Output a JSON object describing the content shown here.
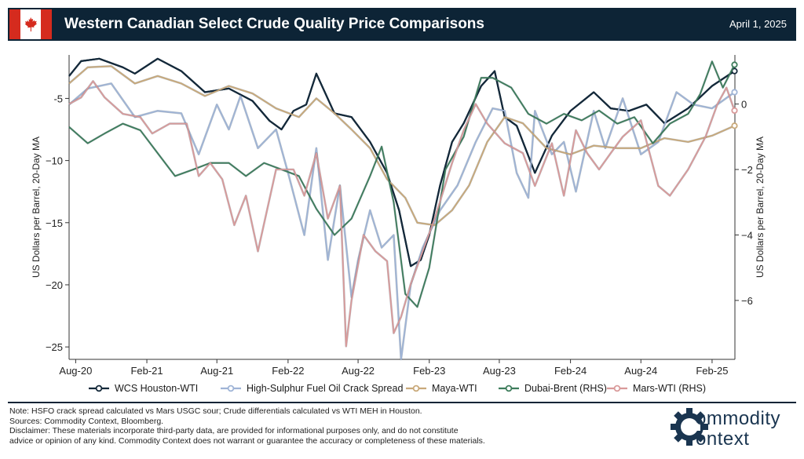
{
  "header": {
    "title": "Western Canadian Select Crude Quality Price Comparisons",
    "date": "April 1, 2025",
    "flag_icon": "maple-leaf-icon"
  },
  "colors": {
    "header_bg": "#0d2436",
    "wcs": "#14293a",
    "hsfo": "#9fb4d6",
    "maya": "#c9a97a",
    "dubai": "#3e7d5c",
    "mars": "#d99a9a"
  },
  "chart_data": {
    "type": "line",
    "x_tick_labels": [
      "Aug-20",
      "Feb-21",
      "Aug-21",
      "Feb-22",
      "Aug-22",
      "Feb-23",
      "Aug-23",
      "Feb-24",
      "Aug-24",
      "Feb-25"
    ],
    "x_range": [
      "2020-07-15",
      "2025-04-01"
    ],
    "left_axis": {
      "label": "US Dollars per Barrel, 20-Day MA",
      "ylim": [
        -26,
        -1.5
      ],
      "ticks": [
        -5,
        -10,
        -15,
        -20,
        -25
      ],
      "tick_labels": [
        "-5",
        "−10",
        "−15",
        "−20",
        "−25"
      ]
    },
    "right_axis": {
      "label": "US Dollars per Barrel, 20-Day MA",
      "ylim": [
        -7.8,
        1.5
      ],
      "ticks": [
        0,
        -2,
        -4,
        -6
      ],
      "tick_labels": [
        "0",
        "−2",
        "−4",
        "−6"
      ]
    },
    "grid": false,
    "legend_position": "bottom",
    "series": [
      {
        "name": "WCS Houston-WTI",
        "axis": "left",
        "x": [
          "2020-07-15",
          "2020-08-15",
          "2020-10-01",
          "2020-12-01",
          "2021-01-01",
          "2021-03-01",
          "2021-05-01",
          "2021-07-01",
          "2021-09-01",
          "2021-11-01",
          "2021-12-15",
          "2022-01-15",
          "2022-02-15",
          "2022-03-20",
          "2022-04-15",
          "2022-06-01",
          "2022-07-15",
          "2022-09-01",
          "2022-10-15",
          "2022-11-15",
          "2022-12-15",
          "2023-01-10",
          "2023-02-01",
          "2023-03-01",
          "2023-04-01",
          "2023-05-01",
          "2023-06-15",
          "2023-07-20",
          "2023-08-15",
          "2023-09-15",
          "2023-11-01",
          "2023-12-15",
          "2024-02-01",
          "2024-04-01",
          "2024-05-15",
          "2024-07-01",
          "2024-08-15",
          "2024-10-01",
          "2024-12-01",
          "2025-02-01",
          "2025-03-31"
        ],
        "y": [
          -3.2,
          -2.0,
          -1.8,
          -2.5,
          -3.0,
          -1.8,
          -2.8,
          -4.5,
          -4.2,
          -5.2,
          -6.8,
          -7.5,
          -6.0,
          -5.5,
          -3.0,
          -6.2,
          -6.5,
          -8.5,
          -11.0,
          -14.0,
          -18.5,
          -18.0,
          -16.0,
          -12.0,
          -8.5,
          -7.0,
          -4.0,
          -2.8,
          -6.5,
          -7.2,
          -11.0,
          -8.0,
          -6.0,
          -4.5,
          -5.8,
          -6.0,
          -5.5,
          -7.0,
          -5.8,
          -4.0,
          -2.8
        ]
      },
      {
        "name": "High-Sulphur Fuel Oil Crack Spread",
        "axis": "left",
        "x": [
          "2020-07-15",
          "2020-09-01",
          "2020-11-01",
          "2021-01-01",
          "2021-03-01",
          "2021-05-01",
          "2021-06-15",
          "2021-08-01",
          "2021-09-01",
          "2021-10-01",
          "2021-11-15",
          "2022-01-01",
          "2022-02-01",
          "2022-03-15",
          "2022-04-15",
          "2022-05-15",
          "2022-06-15",
          "2022-07-15",
          "2022-08-01",
          "2022-09-01",
          "2022-10-01",
          "2022-11-01",
          "2022-11-20",
          "2022-12-15",
          "2023-01-15",
          "2023-03-01",
          "2023-04-15",
          "2023-06-01",
          "2023-07-15",
          "2023-08-15",
          "2023-09-15",
          "2023-10-15",
          "2023-11-01",
          "2023-12-15",
          "2024-01-15",
          "2024-02-15",
          "2024-04-01",
          "2024-05-01",
          "2024-06-15",
          "2024-08-01",
          "2024-09-15",
          "2024-11-01",
          "2024-12-15",
          "2025-02-01",
          "2025-03-31"
        ],
        "y": [
          -5.5,
          -4.2,
          -3.8,
          -6.5,
          -6.0,
          -6.2,
          -9.5,
          -5.5,
          -7.5,
          -4.8,
          -9.0,
          -7.5,
          -11.0,
          -16.0,
          -9.0,
          -18.0,
          -12.0,
          -21.0,
          -18.0,
          -14.0,
          -17.0,
          -16.0,
          -26.0,
          -20.0,
          -17.0,
          -14.0,
          -12.0,
          -8.5,
          -5.8,
          -6.0,
          -11.0,
          -13.0,
          -6.0,
          -9.5,
          -8.5,
          -12.5,
          -6.0,
          -9.0,
          -5.0,
          -9.5,
          -8.5,
          -4.5,
          -5.5,
          -5.8,
          -4.5
        ]
      },
      {
        "name": "Maya-WTI",
        "axis": "left",
        "x": [
          "2020-07-15",
          "2020-09-01",
          "2020-11-01",
          "2021-01-01",
          "2021-03-01",
          "2021-05-01",
          "2021-07-01",
          "2021-09-01",
          "2021-11-01",
          "2022-01-01",
          "2022-03-01",
          "2022-04-15",
          "2022-06-01",
          "2022-07-15",
          "2022-09-01",
          "2022-10-15",
          "2022-12-01",
          "2023-01-01",
          "2023-02-15",
          "2023-04-01",
          "2023-05-15",
          "2023-07-01",
          "2023-08-15",
          "2023-10-01",
          "2023-12-01",
          "2024-02-01",
          "2024-04-01",
          "2024-06-01",
          "2024-08-01",
          "2024-10-01",
          "2024-12-01",
          "2025-02-01",
          "2025-03-31"
        ],
        "y": [
          -3.8,
          -2.5,
          -2.4,
          -3.8,
          -3.2,
          -3.8,
          -4.8,
          -4.0,
          -4.6,
          -5.8,
          -6.5,
          -5.0,
          -6.2,
          -7.5,
          -9.0,
          -11.5,
          -13.0,
          -15.0,
          -15.2,
          -14.0,
          -12.0,
          -8.5,
          -6.5,
          -7.0,
          -9.0,
          -9.5,
          -8.8,
          -9.0,
          -9.0,
          -8.2,
          -8.5,
          -8.0,
          -7.2
        ]
      },
      {
        "name": "Dubai-Brent (RHS)",
        "axis": "right",
        "x": [
          "2020-07-15",
          "2020-09-01",
          "2020-10-15",
          "2020-12-01",
          "2021-01-15",
          "2021-03-01",
          "2021-04-15",
          "2021-06-01",
          "2021-07-15",
          "2021-09-01",
          "2021-10-15",
          "2021-12-01",
          "2022-01-15",
          "2022-03-01",
          "2022-04-15",
          "2022-06-01",
          "2022-07-15",
          "2022-09-01",
          "2022-10-01",
          "2022-11-01",
          "2022-12-01",
          "2023-01-01",
          "2023-02-01",
          "2023-03-15",
          "2023-05-01",
          "2023-06-15",
          "2023-07-15",
          "2023-09-01",
          "2023-10-15",
          "2023-12-01",
          "2024-01-15",
          "2024-03-01",
          "2024-04-15",
          "2024-06-01",
          "2024-07-15",
          "2024-09-01",
          "2024-10-15",
          "2024-12-01",
          "2025-01-01",
          "2025-02-01",
          "2025-03-01",
          "2025-03-31"
        ],
        "y": [
          -0.7,
          -1.2,
          -0.9,
          -0.6,
          -0.8,
          -1.5,
          -2.2,
          -2.0,
          -1.8,
          -1.8,
          -2.2,
          -1.8,
          -2.0,
          -2.2,
          -3.2,
          -4.0,
          -3.5,
          -2.2,
          -1.3,
          -3.0,
          -5.8,
          -6.2,
          -5.0,
          -2.0,
          -1.0,
          0.8,
          0.8,
          0.5,
          -0.3,
          -0.6,
          -0.3,
          -0.5,
          -0.2,
          -0.6,
          -0.4,
          -1.2,
          -0.6,
          -0.3,
          0.3,
          1.3,
          0.5,
          1.2
        ]
      },
      {
        "name": "Mars-WTI (RHS)",
        "axis": "right",
        "x": [
          "2020-07-15",
          "2020-08-15",
          "2020-09-15",
          "2020-10-15",
          "2020-12-01",
          "2021-01-15",
          "2021-02-15",
          "2021-04-01",
          "2021-05-15",
          "2021-06-15",
          "2021-07-15",
          "2021-08-15",
          "2021-09-15",
          "2021-10-15",
          "2021-11-15",
          "2022-01-01",
          "2022-02-15",
          "2022-03-15",
          "2022-04-15",
          "2022-05-15",
          "2022-06-15",
          "2022-07-01",
          "2022-07-15",
          "2022-08-15",
          "2022-09-15",
          "2022-10-15",
          "2022-11-01",
          "2022-11-20",
          "2022-12-15",
          "2023-01-15",
          "2023-02-15",
          "2023-04-01",
          "2023-05-01",
          "2023-06-01",
          "2023-07-01",
          "2023-08-15",
          "2023-10-01",
          "2023-11-01",
          "2023-12-15",
          "2024-01-15",
          "2024-02-15",
          "2024-03-15",
          "2024-04-15",
          "2024-05-15",
          "2024-06-15",
          "2024-08-01",
          "2024-09-15",
          "2024-10-15",
          "2024-12-01",
          "2025-01-15",
          "2025-02-15",
          "2025-03-10",
          "2025-03-31"
        ],
        "y": [
          0.0,
          0.2,
          0.7,
          0.2,
          -0.3,
          -0.4,
          -0.9,
          -0.6,
          -0.6,
          -2.2,
          -1.8,
          -2.3,
          -3.7,
          -2.8,
          -4.5,
          -2.0,
          -2.0,
          -2.8,
          -1.5,
          -3.5,
          -2.5,
          -7.4,
          -6.0,
          -4.0,
          -4.5,
          -4.8,
          -7.0,
          -6.5,
          -5.5,
          -4.5,
          -3.5,
          -1.8,
          -0.8,
          0.0,
          -0.6,
          -1.2,
          -1.5,
          -2.5,
          -1.2,
          -2.8,
          -0.8,
          -1.5,
          -2.0,
          -1.5,
          -1.0,
          -0.5,
          -2.5,
          -2.8,
          -2.0,
          -1.0,
          0.0,
          0.5,
          -0.2
        ]
      }
    ]
  },
  "legend": {
    "items": [
      "WCS Houston-WTI",
      "High-Sulphur Fuel Oil Crack Spread",
      "Maya-WTI",
      "Dubai-Brent (RHS)",
      "Mars-WTI (RHS)"
    ]
  },
  "notes": {
    "line1": "Note: HSFO crack spread calculated vs Mars USGC sour; Crude differentials calculated vs WTI MEH in Houston.",
    "line2": "Sources: Commodity Context, Bloomberg.",
    "line3": "Disclaimer: These materials incorporate third-party data, are provided for informational purposes only, and do not constitute",
    "line4": "advice or opinion of any kind. Commodity Context does not warrant or guarantee the accuracy or completeness of these materials."
  },
  "logo": {
    "word1": "ommodity",
    "word2": "ontext",
    "icon": "gear-c-icon"
  }
}
